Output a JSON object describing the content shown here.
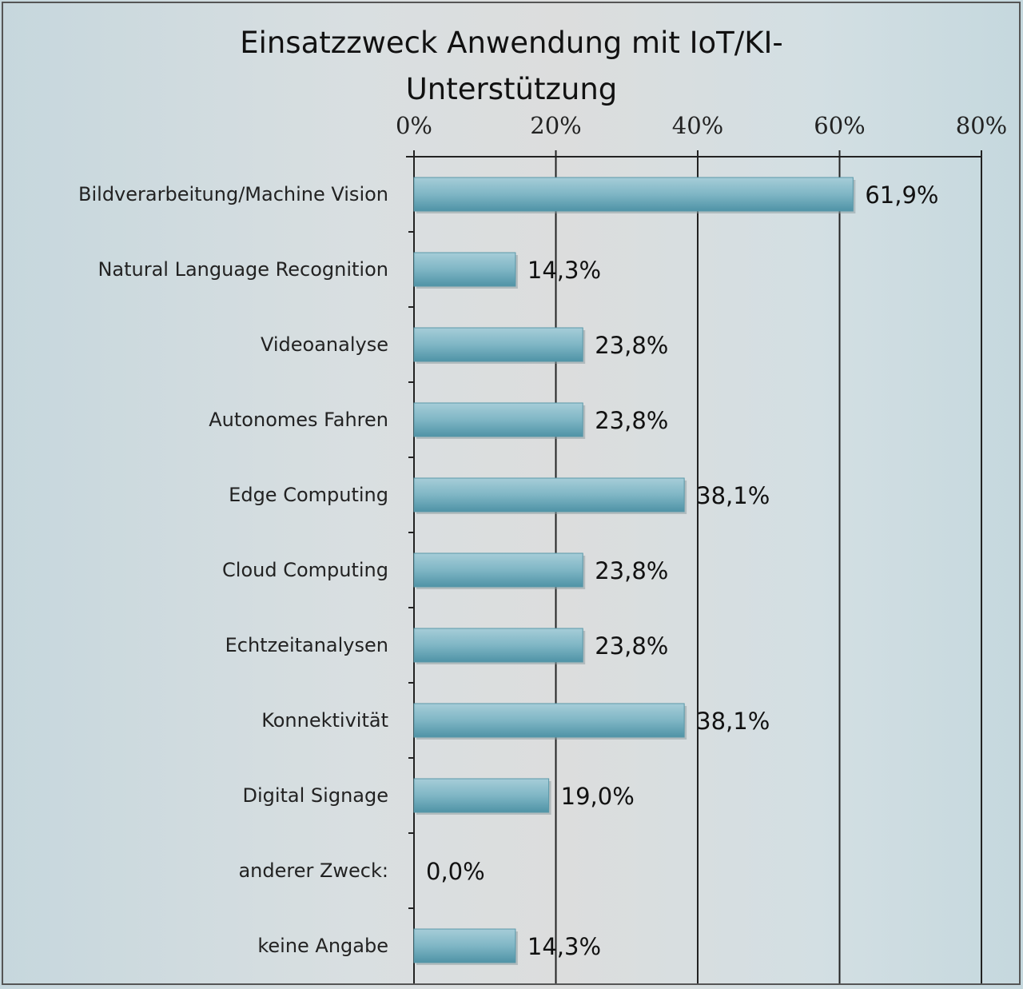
{
  "chart_data": {
    "type": "bar",
    "orientation": "horizontal",
    "title_lines": [
      "Einsatzzweck Anwendung mit IoT/KI-",
      "Unterstützung"
    ],
    "categories": [
      "Bildverarbeitung/Machine Vision",
      "Natural Language Recognition",
      "Videoanalyse",
      "Autonomes Fahren",
      "Edge Computing",
      "Cloud Computing",
      "Echtzeitanalysen",
      "Konnektivität",
      "Digital Signage",
      "anderer Zweck:",
      "keine Angabe"
    ],
    "values": [
      61.9,
      14.3,
      23.8,
      23.8,
      38.1,
      23.8,
      23.8,
      38.1,
      19.0,
      0.0,
      14.3
    ],
    "value_labels": [
      "61,9%",
      "14,3%",
      "23,8%",
      "23,8%",
      "38,1%",
      "23,8%",
      "23,8%",
      "38,1%",
      "19,0%",
      "0,0%",
      "14,3%"
    ],
    "x_ticks": [
      0,
      20,
      40,
      60,
      80
    ],
    "x_tick_labels": [
      "0%",
      "20%",
      "40%",
      "60%",
      "80%"
    ],
    "xlim": [
      0,
      80
    ],
    "axis_position": "top",
    "grid": true,
    "bar_color": "#6aa9b9"
  }
}
